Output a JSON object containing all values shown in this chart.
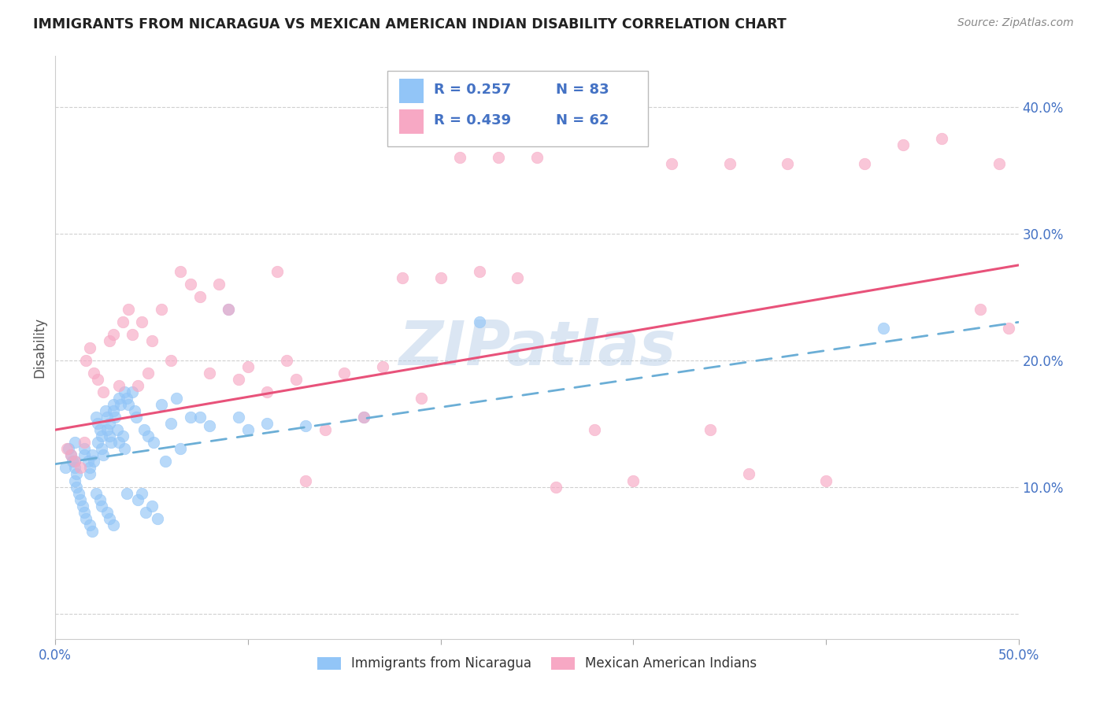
{
  "title": "IMMIGRANTS FROM NICARAGUA VS MEXICAN AMERICAN INDIAN DISABILITY CORRELATION CHART",
  "source": "Source: ZipAtlas.com",
  "ylabel": "Disability",
  "ytick_labels": [
    "",
    "10.0%",
    "20.0%",
    "30.0%",
    "40.0%"
  ],
  "ytick_values": [
    0.0,
    0.1,
    0.2,
    0.3,
    0.4
  ],
  "xlim": [
    0.0,
    0.5
  ],
  "ylim": [
    -0.02,
    0.44
  ],
  "legend_r1": "R = 0.257",
  "legend_n1": "N = 83",
  "legend_r2": "R = 0.439",
  "legend_n2": "N = 62",
  "label1": "Immigrants from Nicaragua",
  "label2": "Mexican American Indians",
  "color1": "#92c5f7",
  "color2": "#f7a8c4",
  "line_color1": "#6baed6",
  "line_color2": "#e8527a",
  "text_blue": "#4472c4",
  "watermark": "ZIPatlas",
  "background_color": "#ffffff",
  "grid_color": "#d0d0d0",
  "scatter1_x": [
    0.005,
    0.007,
    0.008,
    0.009,
    0.01,
    0.01,
    0.01,
    0.01,
    0.011,
    0.011,
    0.012,
    0.013,
    0.014,
    0.015,
    0.015,
    0.015,
    0.016,
    0.017,
    0.018,
    0.018,
    0.018,
    0.019,
    0.019,
    0.02,
    0.021,
    0.021,
    0.022,
    0.022,
    0.023,
    0.023,
    0.024,
    0.024,
    0.024,
    0.025,
    0.026,
    0.027,
    0.027,
    0.027,
    0.028,
    0.028,
    0.028,
    0.029,
    0.03,
    0.03,
    0.03,
    0.031,
    0.032,
    0.033,
    0.033,
    0.034,
    0.035,
    0.036,
    0.036,
    0.037,
    0.037,
    0.038,
    0.04,
    0.041,
    0.042,
    0.043,
    0.045,
    0.046,
    0.047,
    0.048,
    0.05,
    0.051,
    0.053,
    0.055,
    0.057,
    0.06,
    0.063,
    0.065,
    0.07,
    0.075,
    0.08,
    0.09,
    0.095,
    0.1,
    0.11,
    0.13,
    0.16,
    0.22,
    0.43
  ],
  "scatter1_y": [
    0.115,
    0.13,
    0.125,
    0.12,
    0.135,
    0.12,
    0.115,
    0.105,
    0.11,
    0.1,
    0.095,
    0.09,
    0.085,
    0.08,
    0.13,
    0.125,
    0.075,
    0.12,
    0.115,
    0.11,
    0.07,
    0.065,
    0.125,
    0.12,
    0.155,
    0.095,
    0.15,
    0.135,
    0.145,
    0.09,
    0.14,
    0.13,
    0.085,
    0.125,
    0.16,
    0.155,
    0.145,
    0.08,
    0.15,
    0.14,
    0.075,
    0.135,
    0.165,
    0.16,
    0.07,
    0.155,
    0.145,
    0.17,
    0.135,
    0.165,
    0.14,
    0.175,
    0.13,
    0.17,
    0.095,
    0.165,
    0.175,
    0.16,
    0.155,
    0.09,
    0.095,
    0.145,
    0.08,
    0.14,
    0.085,
    0.135,
    0.075,
    0.165,
    0.12,
    0.15,
    0.17,
    0.13,
    0.155,
    0.155,
    0.148,
    0.24,
    0.155,
    0.145,
    0.15,
    0.148,
    0.155,
    0.23,
    0.225
  ],
  "scatter2_x": [
    0.006,
    0.008,
    0.01,
    0.013,
    0.015,
    0.016,
    0.018,
    0.02,
    0.022,
    0.025,
    0.028,
    0.03,
    0.033,
    0.035,
    0.038,
    0.04,
    0.043,
    0.045,
    0.048,
    0.05,
    0.055,
    0.06,
    0.065,
    0.07,
    0.075,
    0.08,
    0.085,
    0.09,
    0.095,
    0.1,
    0.11,
    0.115,
    0.12,
    0.125,
    0.13,
    0.14,
    0.15,
    0.16,
    0.17,
    0.18,
    0.19,
    0.2,
    0.21,
    0.22,
    0.23,
    0.24,
    0.26,
    0.28,
    0.3,
    0.32,
    0.34,
    0.36,
    0.38,
    0.4,
    0.42,
    0.44,
    0.46,
    0.48,
    0.49,
    0.495,
    0.25,
    0.35
  ],
  "scatter2_y": [
    0.13,
    0.125,
    0.12,
    0.115,
    0.135,
    0.2,
    0.21,
    0.19,
    0.185,
    0.175,
    0.215,
    0.22,
    0.18,
    0.23,
    0.24,
    0.22,
    0.18,
    0.23,
    0.19,
    0.215,
    0.24,
    0.2,
    0.27,
    0.26,
    0.25,
    0.19,
    0.26,
    0.24,
    0.185,
    0.195,
    0.175,
    0.27,
    0.2,
    0.185,
    0.105,
    0.145,
    0.19,
    0.155,
    0.195,
    0.265,
    0.17,
    0.265,
    0.36,
    0.27,
    0.36,
    0.265,
    0.1,
    0.145,
    0.105,
    0.355,
    0.145,
    0.11,
    0.355,
    0.105,
    0.355,
    0.37,
    0.375,
    0.24,
    0.355,
    0.225,
    0.36,
    0.355
  ],
  "line1_x_start": 0.0,
  "line1_x_end": 0.5,
  "line1_y_start": 0.118,
  "line1_y_end": 0.23,
  "line2_x_start": 0.0,
  "line2_x_end": 0.5,
  "line2_y_start": 0.145,
  "line2_y_end": 0.275
}
